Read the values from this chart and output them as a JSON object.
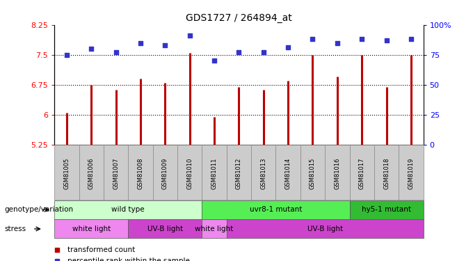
{
  "title": "GDS1727 / 264894_at",
  "samples": [
    "GSM81005",
    "GSM81006",
    "GSM81007",
    "GSM81008",
    "GSM81009",
    "GSM81010",
    "GSM81011",
    "GSM81012",
    "GSM81013",
    "GSM81014",
    "GSM81015",
    "GSM81016",
    "GSM81017",
    "GSM81018",
    "GSM81019"
  ],
  "bar_values": [
    6.05,
    6.75,
    6.63,
    6.9,
    6.8,
    7.55,
    5.95,
    6.7,
    6.63,
    6.85,
    7.5,
    6.95,
    7.5,
    6.7,
    7.5
  ],
  "dot_values": [
    75,
    80,
    77,
    85,
    83,
    91,
    70,
    77,
    77,
    81,
    88,
    85,
    88,
    87,
    88
  ],
  "ylim_left": [
    5.25,
    8.25
  ],
  "ylim_right": [
    0,
    100
  ],
  "yticks_left": [
    5.25,
    6.0,
    6.75,
    7.5,
    8.25
  ],
  "ytick_labels_left": [
    "5.25",
    "6",
    "6.75",
    "7.5",
    "8.25"
  ],
  "yticks_right": [
    0,
    25,
    50,
    75,
    100
  ],
  "ytick_labels_right": [
    "0",
    "25",
    "50",
    "75",
    "100%"
  ],
  "hlines": [
    6.0,
    6.75,
    7.5
  ],
  "bar_color": "#bb0000",
  "dot_color": "#3333cc",
  "genotype_groups": [
    {
      "label": "wild type",
      "start": 0,
      "end": 5,
      "color": "#ccffcc"
    },
    {
      "label": "uvr8-1 mutant",
      "start": 6,
      "end": 11,
      "color": "#55ee55"
    },
    {
      "label": "hy5-1 mutant",
      "start": 12,
      "end": 14,
      "color": "#33bb33"
    }
  ],
  "stress_groups": [
    {
      "label": "white light",
      "start": 0,
      "end": 2,
      "color": "#ee88ee"
    },
    {
      "label": "UV-B light",
      "start": 3,
      "end": 5,
      "color": "#cc44cc"
    },
    {
      "label": "white light",
      "start": 6,
      "end": 6,
      "color": "#ee88ee"
    },
    {
      "label": "UV-B light",
      "start": 7,
      "end": 14,
      "color": "#cc44cc"
    }
  ],
  "legend_items": [
    {
      "label": "transformed count",
      "color": "#bb0000"
    },
    {
      "label": "percentile rank within the sample",
      "color": "#3333cc"
    }
  ],
  "row_label_genotype": "genotype/variation",
  "row_label_stress": "stress"
}
